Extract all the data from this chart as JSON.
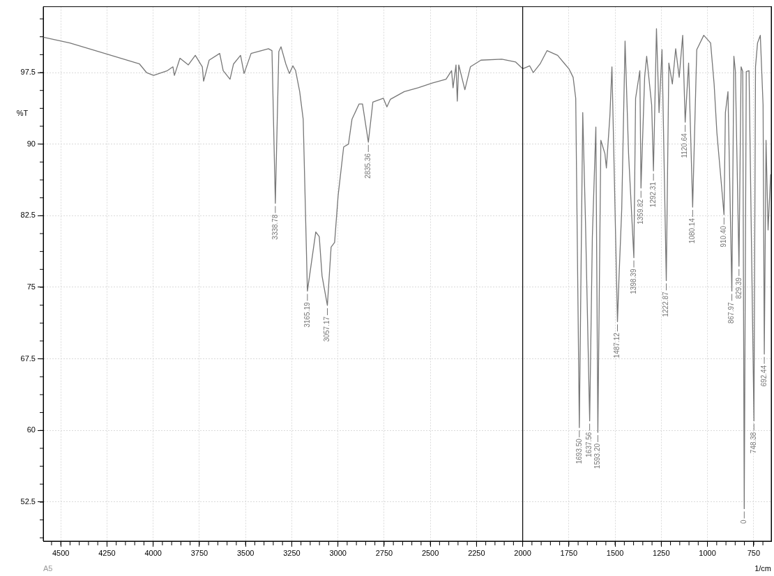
{
  "chart_data": {
    "type": "line",
    "ylabel": "%T",
    "xlabel": "1/cm",
    "xlim": [
      4595,
      655
    ],
    "xticks": [
      4500,
      4250,
      4000,
      3750,
      3500,
      3250,
      3000,
      2750,
      2500,
      2250,
      2000,
      1750,
      1500,
      1250,
      1000,
      750
    ],
    "ylim": [
      48.4,
      104.4
    ],
    "yticks": [
      52.5,
      60,
      67.5,
      75,
      82.5,
      90,
      97.5
    ],
    "grid": true,
    "legend": false,
    "marker": "none",
    "line_style": "solid",
    "ref_lines": [
      {
        "axis": "x",
        "value": 2000,
        "color": "#000000"
      }
    ],
    "series": [
      {
        "color": "#777777",
        "x": [
          4594,
          4451,
          4262,
          4074,
          4036,
          3998,
          3923,
          3893,
          3885,
          3855,
          3810,
          3772,
          3734,
          3727,
          3697,
          3640,
          3621,
          3584,
          3565,
          3527,
          3508,
          3470,
          3414,
          3376,
          3357,
          3338.78,
          3320,
          3308,
          3282,
          3263,
          3244,
          3229,
          3207,
          3188,
          3165.19,
          3120,
          3101,
          3086,
          3057.17,
          3037,
          3018,
          2999,
          2969,
          2943,
          2924,
          2886,
          2867,
          2835.36,
          2811,
          2754,
          2735,
          2716,
          2641,
          2566,
          2490,
          2415,
          2385,
          2377,
          2361,
          2354,
          2346,
          2313,
          2283,
          2226,
          2113,
          2038,
          2000,
          1962,
          1943,
          1906,
          1868,
          1811,
          1772,
          1750,
          1727,
          1713,
          1693.5,
          1675,
          1660,
          1637.56,
          1623,
          1604,
          1593.2,
          1577,
          1555,
          1547,
          1528,
          1517,
          1487.12,
          1479,
          1464,
          1446,
          1427,
          1398.39,
          1389,
          1366,
          1359.82,
          1340,
          1329,
          1302,
          1292.31,
          1276,
          1262,
          1246,
          1222.87,
          1209,
          1190,
          1172,
          1153,
          1134,
          1120.64,
          1102,
          1080.14,
          1058,
          1020,
          983,
          964,
          949,
          926,
          910.4,
          903,
          889,
          867.97,
          857,
          849,
          829.39,
          818,
          809,
          801,
          790,
          775,
          748.38,
          740,
          729,
          714,
          699,
          692.44,
          683,
          672,
          658
        ],
        "values": [
          101.2,
          100.6,
          99.5,
          98.4,
          97.5,
          97.2,
          97.7,
          98.1,
          97.2,
          99.0,
          98.3,
          99.3,
          98.1,
          96.6,
          98.8,
          99.5,
          97.7,
          96.8,
          98.4,
          99.3,
          97.4,
          99.5,
          99.8,
          100.0,
          99.8,
          83.8,
          99.7,
          100.2,
          98.4,
          97.4,
          98.2,
          97.7,
          95.5,
          92.6,
          74.6,
          80.8,
          80.3,
          76.2,
          73.1,
          79.2,
          79.7,
          84.6,
          89.7,
          90.0,
          92.6,
          94.2,
          94.2,
          90.2,
          94.4,
          94.8,
          93.9,
          94.7,
          95.5,
          95.9,
          96.4,
          96.8,
          97.7,
          95.9,
          98.3,
          94.5,
          98.3,
          95.7,
          98.1,
          98.8,
          98.9,
          98.6,
          97.9,
          98.2,
          97.5,
          98.4,
          99.8,
          99.3,
          98.4,
          97.9,
          97.0,
          94.8,
          60.3,
          93.3,
          81.7,
          61.0,
          80.3,
          91.8,
          59.8,
          90.4,
          89.0,
          87.5,
          93.0,
          98.1,
          71.4,
          75.9,
          83.2,
          100.8,
          89.0,
          78.1,
          94.8,
          97.7,
          85.4,
          97.0,
          99.2,
          94.1,
          87.2,
          102.1,
          93.3,
          99.9,
          75.7,
          98.5,
          96.3,
          100.0,
          97.0,
          101.4,
          92.3,
          98.5,
          83.4,
          99.9,
          101.4,
          100.6,
          96.3,
          91.2,
          86.1,
          82.6,
          93.3,
          95.5,
          74.6,
          99.2,
          97.7,
          77.2,
          98.1,
          97.6,
          51.8,
          97.6,
          97.7,
          61.0,
          98.1,
          100.6,
          101.4,
          94.1,
          68.0,
          90.4,
          81.0,
          86.8
        ]
      }
    ],
    "annotations": [
      {
        "text": "3338.78",
        "x": 3338.78,
        "y": 83.8
      },
      {
        "text": "3165.19",
        "x": 3165.19,
        "y": 74.6
      },
      {
        "text": "3057.17",
        "x": 3057.17,
        "y": 73.1
      },
      {
        "text": "2835.36",
        "x": 2835.36,
        "y": 90.2
      },
      {
        "text": "1693.50",
        "x": 1693.5,
        "y": 60.3
      },
      {
        "text": "1637.56",
        "x": 1637.56,
        "y": 61.0
      },
      {
        "text": "1593.20",
        "x": 1593.2,
        "y": 59.8
      },
      {
        "text": "1487.12",
        "x": 1487.12,
        "y": 71.4
      },
      {
        "text": "1398.39",
        "x": 1398.39,
        "y": 78.1
      },
      {
        "text": "1359.82",
        "x": 1359.82,
        "y": 85.4
      },
      {
        "text": "1292.31",
        "x": 1292.31,
        "y": 87.2
      },
      {
        "text": "1222.87",
        "x": 1222.87,
        "y": 75.7
      },
      {
        "text": "1120.64",
        "x": 1120.64,
        "y": 92.3
      },
      {
        "text": "1080.14",
        "x": 1080.14,
        "y": 83.4
      },
      {
        "text": "910.40",
        "x": 910.4,
        "y": 82.6
      },
      {
        "text": "867.97",
        "x": 867.97,
        "y": 74.6
      },
      {
        "text": "829.39",
        "x": 829.39,
        "y": 77.2
      },
      {
        "text": "0",
        "x": 801,
        "y": 51.8
      },
      {
        "text": "748.38",
        "x": 748.38,
        "y": 61.0
      },
      {
        "text": "692.44",
        "x": 692.44,
        "y": 68.0
      },
      "A5"
    ]
  }
}
